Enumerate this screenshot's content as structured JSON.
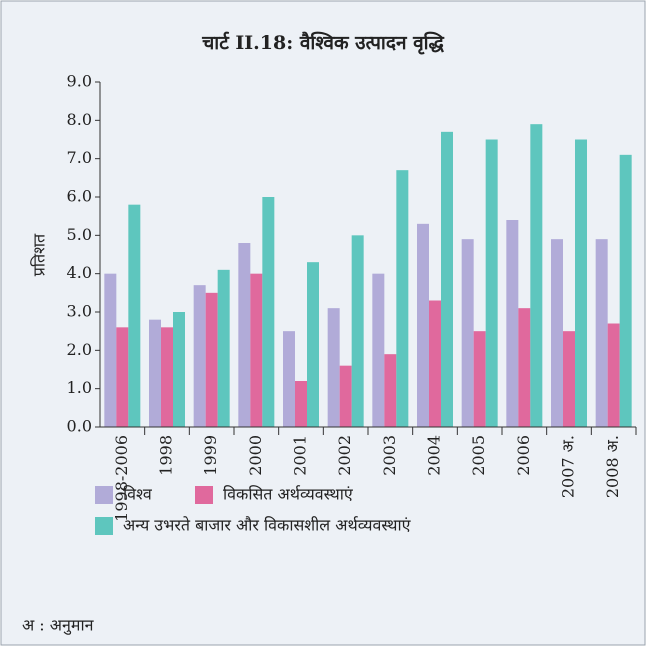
{
  "chart_data": {
    "type": "bar",
    "title": "चार्ट II.18: वैश्विक उत्पादन वृद्धि",
    "ylabel": "प्रतिशत",
    "note": "अ : अनुमान",
    "categories": [
      "1998-2006",
      "1998",
      "1999",
      "2000",
      "2001",
      "2002",
      "2003",
      "2004",
      "2005",
      "2006",
      "2007 अ.",
      "2008 अ."
    ],
    "series": [
      {
        "name": "विश्व",
        "color": "#b1abd8",
        "values": [
          4.0,
          2.8,
          3.7,
          4.8,
          2.5,
          3.1,
          4.0,
          5.3,
          4.9,
          5.4,
          4.9,
          4.9
        ]
      },
      {
        "name": "विकसित अर्थव्यवस्थाएं",
        "color": "#e0699d",
        "values": [
          2.6,
          2.6,
          3.5,
          4.0,
          1.2,
          1.6,
          1.9,
          3.3,
          2.5,
          3.1,
          2.5,
          2.7
        ]
      },
      {
        "name": "अन्य उभरते बाजार और विकासशील अर्थव्यवस्थाएं",
        "color": "#5ec6be",
        "values": [
          5.8,
          3.0,
          4.1,
          6.0,
          4.3,
          5.0,
          6.7,
          7.7,
          7.5,
          7.9,
          7.5,
          7.1
        ]
      }
    ],
    "ylim": [
      0,
      9
    ],
    "yticks": [
      {
        "value": 0,
        "label": "0.0"
      },
      {
        "value": 1,
        "label": "1.0"
      },
      {
        "value": 2,
        "label": "2.0"
      },
      {
        "value": 3,
        "label": "3.0"
      },
      {
        "value": 4,
        "label": "4.0"
      },
      {
        "value": 5,
        "label": "5.0"
      },
      {
        "value": 6,
        "label": "6.0"
      },
      {
        "value": 7,
        "label": "7.0"
      },
      {
        "value": 8,
        "label": "8.0"
      },
      {
        "value": 9,
        "label": "9.0"
      }
    ],
    "grid": false
  }
}
